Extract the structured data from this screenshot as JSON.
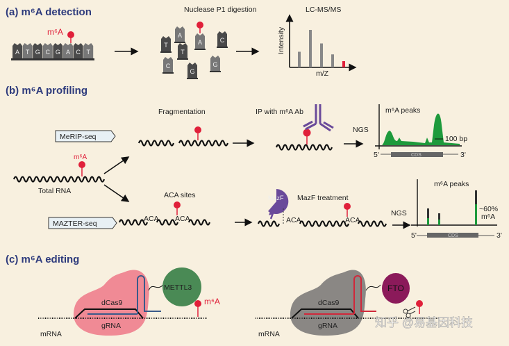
{
  "panel_a": {
    "title": "(a) m⁶A detection",
    "m6a_label": "m⁶A",
    "sequence": [
      "A",
      "T",
      "G",
      "C",
      "G",
      "A",
      "C",
      "T"
    ],
    "digestion_title": "Nuclease P1 digestion",
    "digested": [
      "T",
      "A",
      "T",
      "A",
      "C",
      "C",
      "G",
      "G"
    ],
    "lcms_title": "LC-MS/MS",
    "y_label": "Intensity",
    "x_label": "m/Z",
    "bar_levels": [
      0.3,
      0.72,
      0.46,
      0.25,
      0.12
    ]
  },
  "panel_b": {
    "title": "(b) m⁶A profiling",
    "merip": "MeRIP-seq",
    "mazter": "MAZTER-seq",
    "m6a_label": "m⁶A",
    "total_rna": "Total RNA",
    "fragmentation": "Fragmentation",
    "ip": "IP with m⁶A Ab",
    "ngs": "NGS",
    "peaks_title": "m⁶A peaks",
    "bp": "100 bp",
    "five": "5'",
    "three": "3'",
    "cds": "CDS",
    "aca_sites": "ACA sites",
    "aca": "ACA",
    "mazf": "MazF",
    "mazf_treatment": "MazF treatment",
    "pct": "~60%",
    "pct_m6a": "m⁶A"
  },
  "panel_c": {
    "title": "(c) m⁶A editing",
    "dcas9": "dCas9",
    "grna": "gRNA",
    "mrna": "mRNA",
    "mettl3": "METTL3",
    "fto": "FTO",
    "m6a_label": "m⁶A"
  },
  "watermark": "知乎 @易基因科技",
  "colors": {
    "title": "#2d3a7c",
    "m6a": "#e0203a",
    "green": "#1e9a3c",
    "mettl3": "#4a8a55",
    "fto": "#8b1a5a",
    "pink": "#f08a95",
    "grey": "#8a8784",
    "antibody": "#6a4a9a"
  }
}
